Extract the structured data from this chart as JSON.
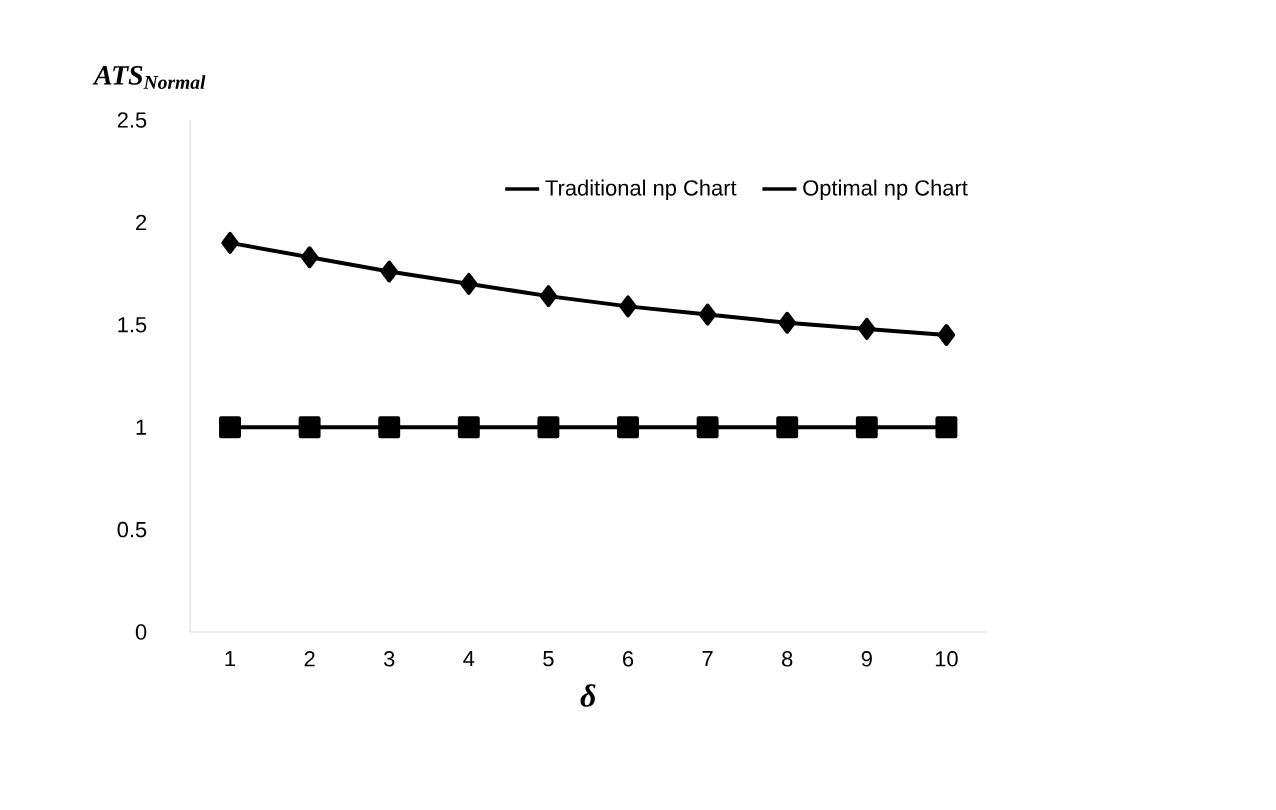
{
  "chart_data": {
    "type": "line",
    "ylabel": "ATS$_{Normal}$",
    "xlabel": "δ",
    "categories": [
      "1",
      "2",
      "3",
      "4",
      "5",
      "6",
      "7",
      "8",
      "9",
      "10"
    ],
    "series": [
      {
        "name": "Traditional np Chart",
        "color": "#000000",
        "marker": "diamond",
        "values": [
          1.9,
          1.83,
          1.76,
          1.7,
          1.64,
          1.59,
          1.55,
          1.51,
          1.48,
          1.45
        ]
      },
      {
        "name": "Optimal np Chart",
        "color": "#000000",
        "marker": "square",
        "values": [
          1,
          1,
          1,
          1,
          1,
          1,
          1,
          1,
          1,
          1
        ]
      }
    ],
    "ylim": [
      0,
      2.5
    ],
    "yticks": [
      0,
      0.5,
      1,
      1.5,
      2,
      2.5
    ],
    "grid": false,
    "legend": "top right",
    "line_style": "solid"
  }
}
